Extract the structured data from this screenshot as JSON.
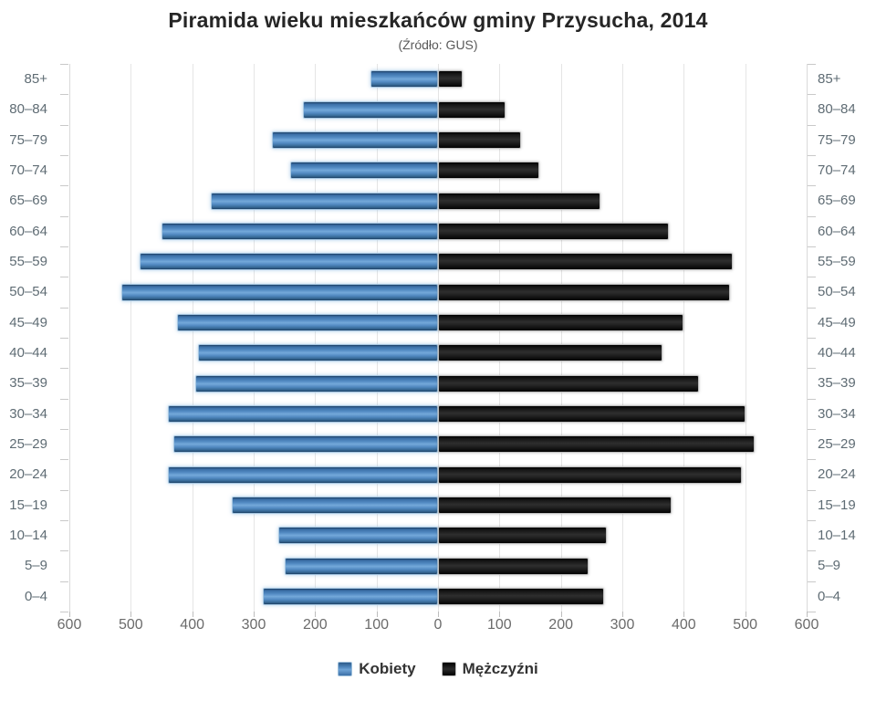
{
  "title": "Piramida wieku mieszkańców gminy Przysucha, 2014",
  "subtitle": "(Źródło: GUS)",
  "legend": [
    {
      "label": "Kobiety",
      "key": "female",
      "color": "#4f86bd"
    },
    {
      "label": "Mężczyźni",
      "key": "male",
      "color": "#1a1a1a"
    }
  ],
  "colors": {
    "female_bar": "#4f86bd",
    "male_bar": "#1a1a1a",
    "gridline": "#e5e5e5",
    "axis_text": "#6b6b6b",
    "category_text": "#5f6c74",
    "title_text": "#262626"
  },
  "chart_data": {
    "type": "bar",
    "variant": "population-pyramid",
    "orientation": "horizontal",
    "title": "Piramida wieku mieszkańców gminy Przysucha, 2014",
    "subtitle": "(Źródło: GUS)",
    "categories": [
      "85+",
      "80–84",
      "75–79",
      "70–74",
      "65–69",
      "60–64",
      "55–59",
      "50–54",
      "45–49",
      "40–44",
      "35–39",
      "30–34",
      "25–29",
      "20–24",
      "15–19",
      "10–14",
      "5–9",
      "0–4"
    ],
    "series": [
      {
        "name": "Kobiety",
        "side": "left",
        "color": "#4f86bd",
        "values": [
          110,
          220,
          270,
          240,
          370,
          450,
          485,
          515,
          425,
          390,
          395,
          440,
          430,
          440,
          335,
          260,
          250,
          285
        ]
      },
      {
        "name": "Mężczyźni",
        "side": "right",
        "color": "#1a1a1a",
        "values": [
          40,
          110,
          135,
          165,
          265,
          375,
          480,
          475,
          400,
          365,
          425,
          500,
          515,
          495,
          380,
          275,
          245,
          270
        ]
      }
    ],
    "xlim": [
      -600,
      600
    ],
    "x_tick_values": [
      -600,
      -500,
      -400,
      -300,
      -200,
      -100,
      0,
      100,
      200,
      300,
      400,
      500,
      600
    ],
    "x_tick_labels": [
      "600",
      "500",
      "400",
      "300",
      "200",
      "100",
      "0",
      "100",
      "200",
      "300",
      "400",
      "500",
      "600"
    ],
    "grid": true,
    "legend_position": "bottom"
  }
}
